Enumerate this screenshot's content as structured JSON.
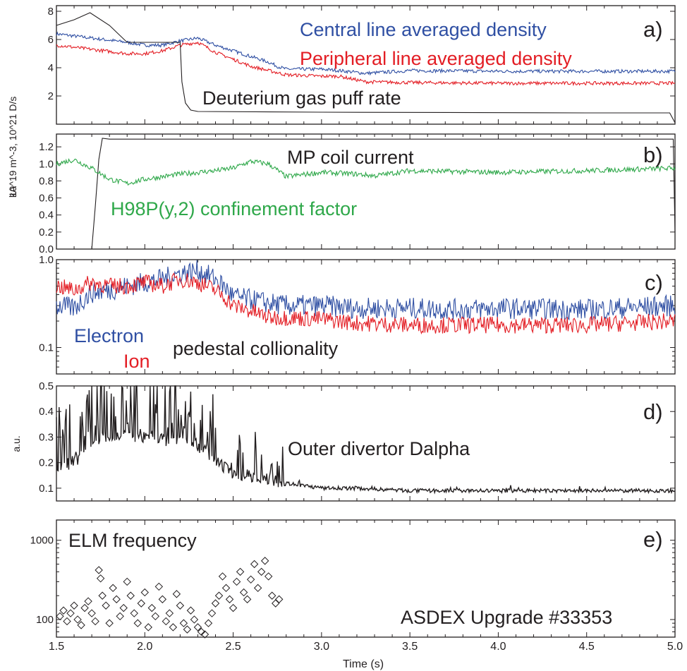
{
  "colors": {
    "blue": "#2f4fa3",
    "red": "#e31d24",
    "black": "#231f20",
    "green": "#2fa84a"
  },
  "xaxis": {
    "label": "Time (s)",
    "range": [
      1.5,
      5.0
    ],
    "ticks": [
      1.5,
      2.0,
      2.5,
      3.0,
      3.5,
      4.0,
      4.5,
      5.0
    ],
    "tick_labels": [
      "1.5",
      "2.0",
      "2.5",
      "3.0",
      "3.5",
      "4.0",
      "4.5",
      "5.0"
    ]
  },
  "chart_data": [
    {
      "type": "line",
      "panel": "a)",
      "ylabel": "10^19 m^-3, 10^21 D/s",
      "ylim": [
        0,
        8.4
      ],
      "yticks": [
        2,
        4,
        6,
        8
      ],
      "ytick_labels": [
        "2",
        "4",
        "6",
        "8"
      ],
      "series": [
        {
          "name": "Central line averaged density",
          "color": "blue",
          "x": [
            1.5,
            1.7,
            1.9,
            2.0,
            2.1,
            2.2,
            2.3,
            2.4,
            2.5,
            2.6,
            2.7,
            2.75,
            2.8,
            3.0,
            3.1,
            3.25,
            3.5,
            4.0,
            4.5,
            5.0
          ],
          "y": [
            6.4,
            6.1,
            5.8,
            5.6,
            5.6,
            5.9,
            6.1,
            5.6,
            5.2,
            4.8,
            4.4,
            4.1,
            3.9,
            3.9,
            3.8,
            3.6,
            3.8,
            3.75,
            3.75,
            3.75
          ]
        },
        {
          "name": "Peripheral line averaged density",
          "color": "red",
          "x": [
            1.5,
            1.7,
            1.9,
            2.0,
            2.1,
            2.2,
            2.3,
            2.4,
            2.5,
            2.6,
            2.7,
            2.8,
            3.0,
            3.1,
            3.25,
            3.5,
            4.0,
            4.5,
            5.0
          ],
          "y": [
            5.6,
            5.3,
            5.0,
            5.0,
            5.2,
            5.6,
            5.8,
            5.1,
            4.6,
            4.1,
            3.8,
            3.5,
            3.4,
            3.4,
            3.0,
            2.95,
            2.9,
            2.9,
            2.9
          ]
        },
        {
          "name": "Deuterium gas puff rate",
          "color": "black",
          "x": [
            1.5,
            1.6,
            1.69,
            1.8,
            1.9,
            2.2,
            2.21,
            2.23,
            2.26,
            2.3,
            3.0,
            4.5,
            4.97,
            5.0
          ],
          "y": [
            7.0,
            7.4,
            7.9,
            7.0,
            5.8,
            5.8,
            3.0,
            1.5,
            1.0,
            0.9,
            0.85,
            0.8,
            0.8,
            0.1
          ]
        }
      ]
    },
    {
      "type": "line",
      "panel": "b)",
      "ylabel": "kA",
      "ylim": [
        0,
        1.35
      ],
      "yticks": [
        0.0,
        0.2,
        0.4,
        0.6,
        0.8,
        1.0,
        1.2
      ],
      "ytick_labels": [
        "0.0",
        "0.2",
        "0.4",
        "0.6",
        "0.8",
        "1.0",
        "1.2"
      ],
      "series": [
        {
          "name": "MP coil current",
          "color": "black",
          "x": [
            1.5,
            1.7,
            1.72,
            1.74,
            1.76,
            1.8,
            4.5,
            4.99,
            5.0
          ],
          "y": [
            0.0,
            0.0,
            0.5,
            1.05,
            1.3,
            1.29,
            1.29,
            1.29,
            0.2
          ]
        },
        {
          "name": "H98P(y,2) confinement factor",
          "color": "green",
          "x": [
            1.5,
            1.6,
            1.7,
            1.8,
            1.9,
            2.0,
            2.2,
            2.4,
            2.5,
            2.6,
            2.7,
            2.8,
            3.0,
            3.2,
            3.3,
            3.5,
            4.0,
            4.5,
            5.0
          ],
          "y": [
            1.0,
            1.05,
            0.95,
            0.82,
            0.77,
            0.82,
            0.88,
            0.92,
            0.95,
            1.03,
            1.0,
            0.85,
            0.9,
            0.88,
            0.86,
            0.92,
            0.9,
            0.92,
            0.95
          ]
        }
      ]
    },
    {
      "type": "line",
      "panel": "c)",
      "ylabel": "",
      "yscale": "log",
      "ylim": [
        0.05,
        1.0
      ],
      "yticks": [
        0.1,
        1.0
      ],
      "ytick_labels": [
        "0.1",
        "1.0"
      ],
      "series": [
        {
          "name": "Electron",
          "color": "blue",
          "x": [
            1.5,
            1.6,
            1.7,
            1.8,
            1.9,
            2.0,
            2.1,
            2.2,
            2.3,
            2.4,
            2.5,
            2.6,
            2.7,
            2.8,
            3.0,
            3.2,
            3.5,
            3.8,
            4.0,
            4.5,
            5.0
          ],
          "y": [
            0.3,
            0.28,
            0.42,
            0.45,
            0.5,
            0.55,
            0.6,
            0.7,
            0.75,
            0.6,
            0.38,
            0.35,
            0.32,
            0.3,
            0.3,
            0.28,
            0.28,
            0.27,
            0.28,
            0.27,
            0.3
          ]
        },
        {
          "name": "Ion",
          "color": "red",
          "x": [
            1.5,
            1.6,
            1.7,
            1.8,
            1.9,
            2.0,
            2.1,
            2.2,
            2.3,
            2.4,
            2.5,
            2.6,
            2.7,
            2.8,
            3.0,
            3.2,
            3.5,
            3.8,
            4.0,
            4.5,
            5.0
          ],
          "y": [
            0.5,
            0.45,
            0.55,
            0.5,
            0.5,
            0.55,
            0.5,
            0.6,
            0.55,
            0.45,
            0.3,
            0.26,
            0.22,
            0.22,
            0.21,
            0.19,
            0.18,
            0.18,
            0.18,
            0.18,
            0.2
          ]
        }
      ]
    },
    {
      "type": "line",
      "panel": "d)",
      "ylabel": "a.u.",
      "ylim": [
        0.05,
        0.5
      ],
      "yticks": [
        0.1,
        0.2,
        0.3,
        0.4,
        0.5
      ],
      "ytick_labels": [
        "0.1",
        "0.2",
        "0.3",
        "0.4",
        "0.5"
      ],
      "series": [
        {
          "name": "Outer divertor Dalpha",
          "color": "black",
          "x": [
            1.5,
            1.6,
            1.7,
            1.8,
            1.9,
            2.0,
            2.1,
            2.2,
            2.3,
            2.4,
            2.5,
            2.6,
            2.7,
            2.8,
            3.0,
            3.2,
            3.5,
            4.0,
            4.5,
            5.0
          ],
          "y": [
            0.18,
            0.2,
            0.27,
            0.31,
            0.31,
            0.3,
            0.29,
            0.29,
            0.27,
            0.2,
            0.16,
            0.15,
            0.14,
            0.12,
            0.1,
            0.1,
            0.09,
            0.09,
            0.09,
            0.09
          ]
        }
      ]
    },
    {
      "type": "scatter",
      "panel": "e)",
      "ylabel": "",
      "yscale": "log",
      "ylim": [
        60,
        1800
      ],
      "yticks": [
        100,
        1000
      ],
      "ytick_labels": [
        "100",
        "1000"
      ],
      "series": [
        {
          "name": "ELM frequency",
          "color": "black",
          "x": [
            1.52,
            1.54,
            1.56,
            1.58,
            1.6,
            1.62,
            1.64,
            1.66,
            1.68,
            1.7,
            1.72,
            1.74,
            1.75,
            1.76,
            1.78,
            1.8,
            1.82,
            1.84,
            1.86,
            1.88,
            1.9,
            1.92,
            1.94,
            1.96,
            1.98,
            2.0,
            2.02,
            2.04,
            2.06,
            2.08,
            2.1,
            2.12,
            2.14,
            2.16,
            2.18,
            2.2,
            2.22,
            2.24,
            2.26,
            2.28,
            2.3,
            2.32,
            2.34,
            2.36,
            2.38,
            2.4,
            2.42,
            2.44,
            2.46,
            2.48,
            2.5,
            2.52,
            2.54,
            2.56,
            2.58,
            2.6,
            2.62,
            2.64,
            2.66,
            2.68,
            2.7,
            2.72,
            2.74,
            2.76
          ],
          "y": [
            110,
            130,
            95,
            120,
            150,
            100,
            85,
            140,
            170,
            120,
            95,
            420,
            330,
            200,
            150,
            90,
            250,
            180,
            110,
            140,
            300,
            200,
            120,
            90,
            160,
            220,
            80,
            140,
            110,
            260,
            180,
            95,
            120,
            80,
            210,
            150,
            90,
            75,
            130,
            100,
            80,
            70,
            65,
            90,
            120,
            160,
            200,
            350,
            250,
            180,
            140,
            300,
            400,
            220,
            180,
            320,
            500,
            250,
            400,
            550,
            350,
            200,
            160,
            180
          ]
        }
      ]
    }
  ],
  "annotations": {
    "a": {
      "central": "Central line averaged density",
      "peripheral": "Peripheral line averaged density",
      "gas": "Deuterium gas puff rate"
    },
    "b": {
      "mp": "MP coil current",
      "h98": "H98P(y,2) confinement factor"
    },
    "c": {
      "electron": "Electron",
      "ion": "Ion",
      "pedestal": "pedestal collionality"
    },
    "d": {
      "dalpha": "Outer divertor Dalpha"
    },
    "e": {
      "elm": "ELM frequency",
      "shot": "ASDEX Upgrade #33353"
    }
  },
  "panel_labels": [
    "a)",
    "b)",
    "c)",
    "d)",
    "e)"
  ],
  "ylabels": {
    "a": "10^19 m^-3, 10^21 D/s",
    "b": "kA",
    "d": "a.u."
  }
}
